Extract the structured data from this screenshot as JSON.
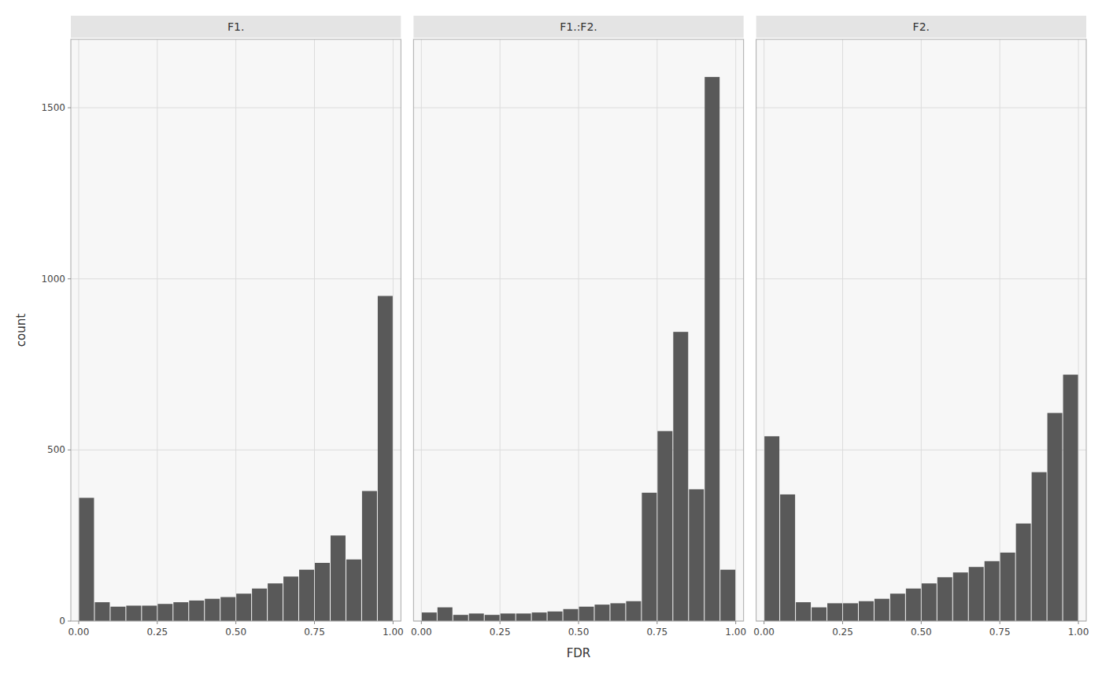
{
  "chart_data": [
    {
      "type": "histogram",
      "title": "F1.",
      "ylabel": "count",
      "color": "#595959",
      "grid": true,
      "bins": [
        0.0,
        0.05,
        0.1,
        0.15,
        0.2,
        0.25,
        0.3,
        0.35,
        0.4,
        0.45,
        0.5,
        0.55,
        0.6,
        0.65,
        0.7,
        0.75,
        0.8,
        0.85,
        0.9,
        0.95,
        1.0
      ],
      "values": [
        360,
        55,
        42,
        45,
        45,
        50,
        55,
        60,
        65,
        70,
        80,
        95,
        110,
        130,
        150,
        170,
        250,
        180,
        380,
        950
      ],
      "xlim": [
        -0.025,
        1.025
      ],
      "ylim": [
        0,
        1700
      ],
      "xticks": [
        {
          "value": 0.0,
          "label": "0.00"
        },
        {
          "value": 0.25,
          "label": "0.25"
        },
        {
          "value": 0.5,
          "label": "0.50"
        },
        {
          "value": 0.75,
          "label": "0.75"
        },
        {
          "value": 1.0,
          "label": "1.00"
        }
      ],
      "yticks": [
        0,
        500,
        1000,
        1500
      ]
    },
    {
      "type": "histogram",
      "title": "F1.:F2.",
      "xlabel": "FDR",
      "color": "#595959",
      "grid": true,
      "tick_labels": "x",
      "bins": [
        0.0,
        0.05,
        0.1,
        0.15,
        0.2,
        0.25,
        0.3,
        0.35,
        0.4,
        0.45,
        0.5,
        0.55,
        0.6,
        0.65,
        0.7,
        0.75,
        0.8,
        0.85,
        0.9,
        0.95,
        1.0
      ],
      "values": [
        25,
        40,
        18,
        22,
        18,
        22,
        22,
        25,
        28,
        35,
        42,
        48,
        52,
        58,
        375,
        555,
        845,
        385,
        1590,
        150
      ],
      "xlim": [
        -0.025,
        1.025
      ],
      "ylim": [
        0,
        1700
      ],
      "xticks": [
        {
          "value": 0.0,
          "label": "0.00"
        },
        {
          "value": 0.25,
          "label": "0.25"
        },
        {
          "value": 0.5,
          "label": "0.50"
        },
        {
          "value": 0.75,
          "label": "0.75"
        },
        {
          "value": 1.0,
          "label": "1.00"
        }
      ],
      "yticks": [
        0,
        500,
        1000,
        1500
      ]
    },
    {
      "type": "histogram",
      "title": "F2.",
      "color": "#595959",
      "grid": true,
      "tick_labels": "x",
      "bins": [
        0.0,
        0.05,
        0.1,
        0.15,
        0.2,
        0.25,
        0.3,
        0.35,
        0.4,
        0.45,
        0.5,
        0.55,
        0.6,
        0.65,
        0.7,
        0.75,
        0.8,
        0.85,
        0.9,
        0.95,
        1.0
      ],
      "values": [
        540,
        370,
        55,
        40,
        52,
        52,
        58,
        65,
        80,
        95,
        110,
        128,
        142,
        158,
        175,
        200,
        285,
        435,
        608,
        720
      ],
      "xlim": [
        -0.025,
        1.025
      ],
      "ylim": [
        0,
        1700
      ],
      "xticks": [
        {
          "value": 0.0,
          "label": "0.00"
        },
        {
          "value": 0.25,
          "label": "0.25"
        },
        {
          "value": 0.5,
          "label": "0.50"
        },
        {
          "value": 0.75,
          "label": "0.75"
        },
        {
          "value": 1.0,
          "label": "1.00"
        }
      ],
      "yticks": [
        0,
        500,
        1000,
        1500
      ]
    }
  ]
}
